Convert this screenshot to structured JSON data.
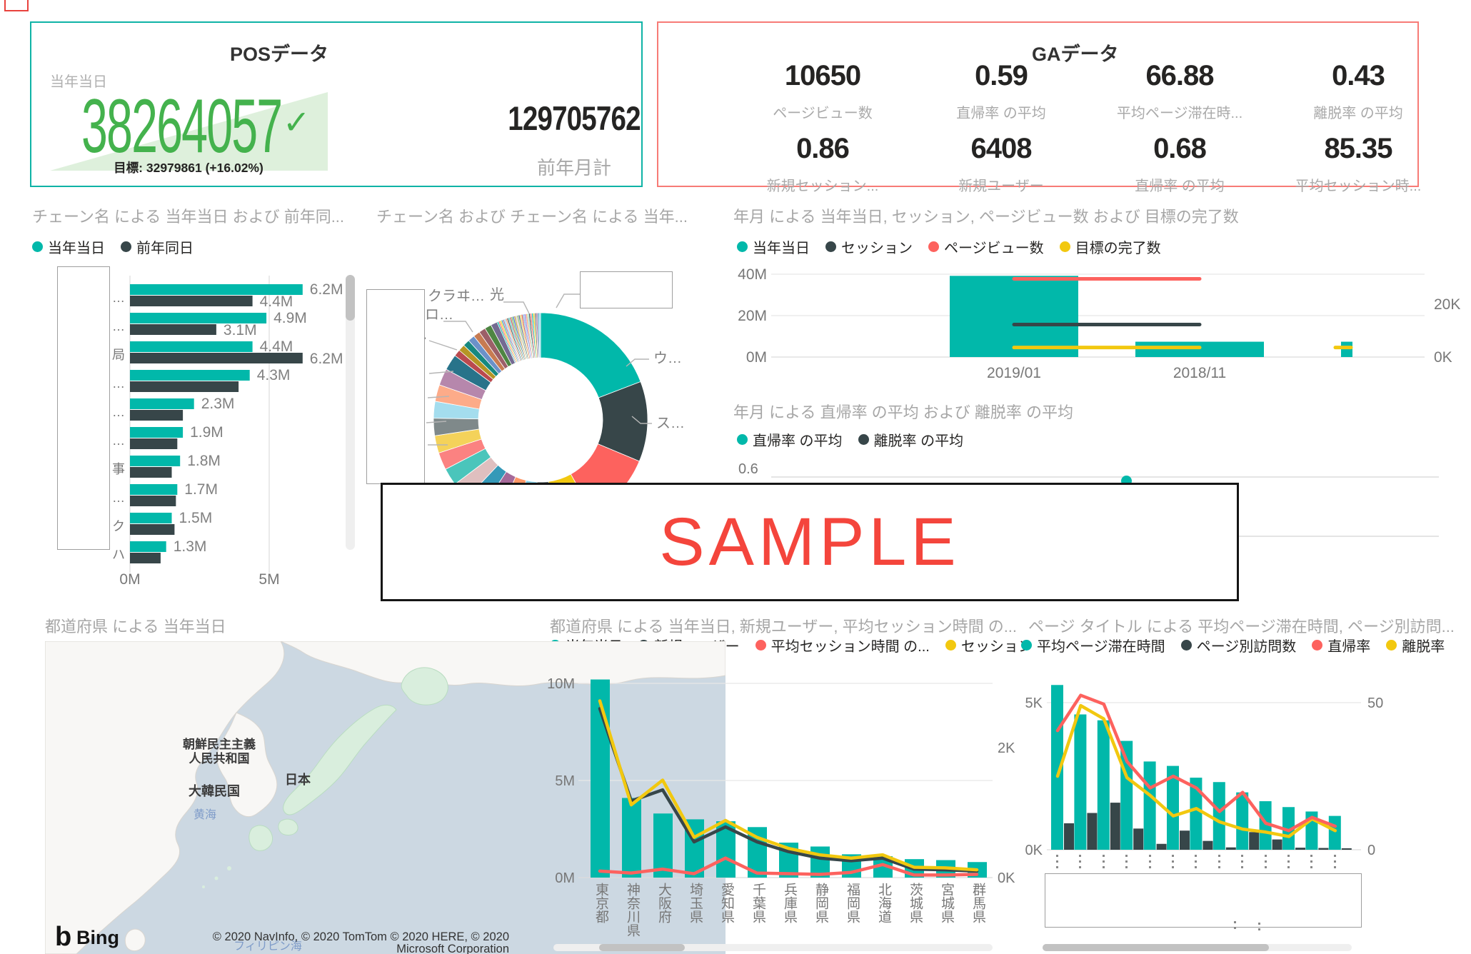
{
  "pos_card": {
    "title": "POSデータ",
    "metric_label": "当年当日",
    "value": "38264057",
    "check": "✓",
    "goal": "目標: 32979861 (+16.02%)",
    "secondary_value": "129705762",
    "secondary_label": "前年月計"
  },
  "ga_card": {
    "title": "GAデータ",
    "kpis": [
      {
        "value": "10650",
        "label": "ページビュー数"
      },
      {
        "value": "0.59",
        "label": "直帰率 の平均"
      },
      {
        "value": "66.88",
        "label": "平均ページ滞在時..."
      },
      {
        "value": "0.43",
        "label": "離脱率 の平均"
      },
      {
        "value": "0.86",
        "label": "新規セッション..."
      },
      {
        "value": "6408",
        "label": "新規ユーザー"
      },
      {
        "value": "0.68",
        "label": "直帰率 の平均"
      },
      {
        "value": "85.35",
        "label": "平均セッション時..."
      }
    ]
  },
  "sample_overlay": {
    "text": "SAMPLE",
    "color": "#f4453c"
  },
  "map": {
    "title": "都道府県 による 当年当日",
    "labels": {
      "north_korea_1": "朝鮮民主主義",
      "north_korea_2": "人民共和国",
      "south_korea": "大韓民国",
      "japan": "日本",
      "yellow_sea": "黄海",
      "philippine_sea": "フィリピン海"
    },
    "logo_mark": "b",
    "logo_text": "Bing",
    "attribution_1": "© 2020 NavInfo, © 2020 TomTom © 2020 HERE, © 2020",
    "attribution_2": "Microsoft Corporation"
  },
  "colors": {
    "teal": "#01B8AA",
    "dark": "#374649",
    "red": "#FD625E",
    "yellow": "#F2C80F",
    "green": "#44b24d",
    "light_green": "#def0dc",
    "title_gray": "#a6a6a6",
    "axis_gray": "#777777",
    "pos_border": "#0fb3a6",
    "ga_border": "#f77b76"
  },
  "chart_data": [
    {
      "id": "chain_bar",
      "type": "bar",
      "orientation": "horizontal",
      "title": "チェーン名 による 当年当日 および 前年同...",
      "legend": [
        {
          "label": "当年当日",
          "color": "#01B8AA"
        },
        {
          "label": "前年同日",
          "color": "#374649"
        }
      ],
      "series": [
        {
          "name": "当年当日",
          "color": "#01B8AA",
          "unit": "M",
          "values": [
            6.2,
            4.9,
            4.4,
            4.3,
            2.3,
            1.9,
            1.8,
            1.7,
            1.5,
            1.3
          ]
        },
        {
          "name": "前年同日",
          "color": "#374649",
          "unit": "M",
          "values": [
            4.4,
            3.1,
            6.2,
            3.9,
            1.9,
            1.7,
            1.5,
            1.65,
            1.6,
            1.1
          ]
        }
      ],
      "data_labels": {
        "current": [
          "6.2M",
          "4.9M",
          "4.4M",
          "4.3M",
          "2.3M",
          "1.9M",
          "1.8M",
          "1.7M",
          "1.5M",
          "1.3M"
        ],
        "prev": [
          "4.4M",
          "3.1M",
          "6.2M",
          "",
          "",
          "",
          "",
          "",
          "",
          ""
        ]
      },
      "visible_category_fragments": [
        "…",
        "…",
        "局",
        "…",
        "…",
        "…",
        "事",
        "…",
        "ク",
        "ハ"
      ],
      "x_ticks": [
        "0M",
        "5M"
      ],
      "xlim": [
        0,
        5
      ]
    },
    {
      "id": "donut",
      "type": "pie",
      "title": "チェーン名 および チェーン名 による 当年...",
      "callouts": [
        "クラヰ…",
        "光",
        "ロ…",
        "‥",
        "ウ…",
        "ス…"
      ],
      "slices": [
        {
          "p": 19,
          "c": "#01B8AA"
        },
        {
          "p": 12,
          "c": "#374649"
        },
        {
          "p": 10.5,
          "c": "#FD625E"
        },
        {
          "p": 6,
          "c": "#F2C80F"
        },
        {
          "p": 2.9,
          "c": "#5F6B6D"
        },
        {
          "p": 2.8,
          "c": "#8AD4EB"
        },
        {
          "p": 2.8,
          "c": "#FE9666"
        },
        {
          "p": 2.7,
          "c": "#A66999"
        },
        {
          "p": 2.7,
          "c": "#3599B8"
        },
        {
          "p": 2.7,
          "c": "#DFBFBF"
        },
        {
          "p": 2.6,
          "c": "#4AC5BB"
        },
        {
          "p": 2.6,
          "c": "#FB8281"
        },
        {
          "p": 2.6,
          "c": "#F4D25A"
        },
        {
          "p": 2.6,
          "c": "#7F898A"
        },
        {
          "p": 2.5,
          "c": "#A4DDEE"
        },
        {
          "p": 2.5,
          "c": "#FDAB89"
        },
        {
          "p": 2.5,
          "c": "#B687AC"
        },
        {
          "p": 2.4,
          "c": "#28738A"
        },
        {
          "p": 1,
          "c": "#BA4A4F"
        },
        {
          "p": 1,
          "c": "#B59525"
        },
        {
          "p": 1,
          "c": "#168980"
        },
        {
          "p": 1,
          "c": "#6B91C9"
        },
        {
          "p": 1,
          "c": "#C77B52"
        },
        {
          "p": 1,
          "c": "#9C5F68"
        },
        {
          "p": 1,
          "c": "#4E8542"
        },
        {
          "p": 1,
          "c": "#746A92"
        },
        {
          "p": 0.22,
          "c": "#01B8AA"
        },
        {
          "p": 0.22,
          "c": "#FD625E"
        },
        {
          "p": 0.22,
          "c": "#F2C80F"
        },
        {
          "p": 0.22,
          "c": "#3599B8"
        },
        {
          "p": 0.22,
          "c": "#A66999"
        },
        {
          "p": 0.22,
          "c": "#8AD4EB"
        },
        {
          "p": 0.22,
          "c": "#FE9666"
        },
        {
          "p": 0.22,
          "c": "#374649"
        },
        {
          "p": 0.22,
          "c": "#4AC5BB"
        },
        {
          "p": 0.22,
          "c": "#BA4A4F"
        },
        {
          "p": 0.22,
          "c": "#6BBB4E"
        },
        {
          "p": 0.22,
          "c": "#2F63C4"
        },
        {
          "p": 0.22,
          "c": "#B59525"
        },
        {
          "p": 0.22,
          "c": "#DFBFBF"
        },
        {
          "p": 0.22,
          "c": "#73B761"
        },
        {
          "p": 0.22,
          "c": "#4A588A"
        },
        {
          "p": 0.22,
          "c": "#ECC846"
        },
        {
          "p": 0.22,
          "c": "#CD4C46"
        },
        {
          "p": 0.22,
          "c": "#71AFE2"
        },
        {
          "p": 0.22,
          "c": "#8D6FD1"
        },
        {
          "p": 0.22,
          "c": "#EE9E64"
        },
        {
          "p": 0.22,
          "c": "#95DABB"
        },
        {
          "p": 0.22,
          "c": "#374649"
        },
        {
          "p": 0.22,
          "c": "#FD625E"
        },
        {
          "p": 0.22,
          "c": "#01B8AA"
        },
        {
          "p": 0.22,
          "c": "#F2C80F"
        },
        {
          "p": 0.22,
          "c": "#5F6B6D"
        },
        {
          "p": 0.22,
          "c": "#A66999"
        },
        {
          "p": 0.22,
          "c": "#3599B8"
        },
        {
          "p": 0.22,
          "c": "#8AD4EB"
        }
      ]
    },
    {
      "id": "monthly",
      "type": "bar+line",
      "title": "年月 による 当年当日, セッション, ページビュー数 および 目標の完了数",
      "legend": [
        {
          "label": "当年当日",
          "color": "#01B8AA"
        },
        {
          "label": "セッション",
          "color": "#374649"
        },
        {
          "label": "ページビュー数",
          "color": "#FD625E"
        },
        {
          "label": "目標の完了数",
          "color": "#F2C80F"
        }
      ],
      "categories": [
        "2019/01",
        "2018/11"
      ],
      "bar_series": {
        "name": "当年当日",
        "color": "#01B8AA",
        "unit": "M",
        "values": [
          39.2,
          7.4
        ],
        "partial_next_bar": 7.4
      },
      "line_series": [
        {
          "name": "セッション",
          "color": "#374649",
          "unit": "K",
          "values": [
            12.3,
            12.3
          ]
        },
        {
          "name": "ページビュー数",
          "color": "#FD625E",
          "unit": "K",
          "values": [
            29.6,
            29.6
          ]
        },
        {
          "name": "目標の完了数",
          "color": "#F2C80F",
          "unit": "K",
          "values": [
            3.6,
            3.6
          ],
          "partial_next_value": 3.6
        }
      ],
      "y_left_ticks": [
        "40M",
        "20M",
        "0M"
      ],
      "y_right_ticks": [
        "20K",
        "0K"
      ]
    },
    {
      "id": "rate",
      "type": "scatter",
      "title": "年月 による 直帰率 の平均 および 離脱率 の平均",
      "legend": [
        {
          "label": "直帰率 の平均",
          "color": "#01B8AA"
        },
        {
          "label": "離脱率 の平均",
          "color": "#374649"
        }
      ],
      "y_tick": "0.6",
      "visible_points": [
        {
          "series": "直帰率 の平均",
          "value": 0.6
        }
      ]
    },
    {
      "id": "prefecture",
      "type": "bar+line",
      "title": "都道府県 による 当年当日, 新規ユーザー, 平均セッション時間 の...",
      "legend": [
        {
          "label": "当年当日",
          "color": "#01B8AA"
        },
        {
          "label": "新規ユーザー",
          "color": "#374649"
        },
        {
          "label": "平均セッション時間 の...",
          "color": "#FD625E"
        },
        {
          "label": "セッション",
          "color": "#F2C80F"
        }
      ],
      "categories": [
        "東京都",
        "神奈川県",
        "大阪府",
        "埼玉県",
        "愛知県",
        "千葉県",
        "兵庫県",
        "静岡県",
        "福岡県",
        "北海道",
        "茨城県",
        "宮城県",
        "群馬県"
      ],
      "bar_series": {
        "name": "当年当日",
        "color": "#01B8AA",
        "unit": "M",
        "values": [
          10.2,
          4.1,
          3.3,
          3.0,
          2.9,
          2.6,
          1.8,
          1.6,
          1.2,
          1.1,
          0.95,
          0.9,
          0.8
        ]
      },
      "line_series": [
        {
          "name": "新規ユーザー",
          "color": "#374649",
          "unit": "K",
          "values": [
            2.6,
            1.18,
            1.35,
            0.55,
            0.78,
            0.55,
            0.4,
            0.3,
            0.26,
            0.3,
            0.13,
            0.12,
            0.1
          ]
        },
        {
          "name": "平均セッション時間 の...",
          "color": "#FD625E",
          "unit": "K",
          "values": [
            0.1,
            0.07,
            0.13,
            0.06,
            0.3,
            0.07,
            0.06,
            0.05,
            0.08,
            0.2,
            0.04,
            0.04,
            0.05
          ]
        },
        {
          "name": "セッション",
          "color": "#F2C80F",
          "unit": "K",
          "values": [
            2.72,
            1.12,
            1.5,
            0.62,
            0.88,
            0.62,
            0.45,
            0.35,
            0.3,
            0.35,
            0.16,
            0.15,
            0.12
          ]
        }
      ],
      "y_left_ticks": [
        "10M",
        "5M",
        "0M"
      ],
      "y_right_ticks": [
        "2K",
        "0K"
      ]
    },
    {
      "id": "pagetitle",
      "type": "bar+line",
      "title": "ページ タイトル による 平均ページ滞在時間, ページ別訪問...",
      "legend": [
        {
          "label": "平均ページ滞在時間",
          "color": "#01B8AA"
        },
        {
          "label": "ページ別訪問数",
          "color": "#374649"
        },
        {
          "label": "直帰率",
          "color": "#FD625E"
        },
        {
          "label": "離脱率",
          "color": "#F2C80F"
        }
      ],
      "category_count": 13,
      "bar_series": [
        {
          "name": "平均ページ滞在時間",
          "color": "#01B8AA",
          "unit": "K",
          "values": [
            5.6,
            4.6,
            4.4,
            3.7,
            3.0,
            2.85,
            2.45,
            2.3,
            1.95,
            1.65,
            1.45,
            1.3,
            1.15
          ]
        },
        {
          "name": "ページ別訪問数",
          "color": "#374649",
          "unit": "K",
          "values": [
            0.9,
            1.25,
            1.6,
            0.72,
            0.2,
            0.65,
            0.3,
            0.08,
            0.6,
            0.35,
            0.07,
            0.06,
            0.05
          ]
        }
      ],
      "line_series": [
        {
          "name": "直帰率",
          "color": "#FD625E",
          "values": [
            40.5,
            52.5,
            49.5,
            30,
            21,
            25,
            21,
            13,
            19.5,
            9,
            6.5,
            11,
            8
          ]
        },
        {
          "name": "離脱率",
          "color": "#F2C80F",
          "values": [
            25,
            49,
            44.5,
            24.5,
            18.5,
            11.5,
            14,
            9.5,
            7,
            6,
            4.5,
            10.5,
            6.5
          ]
        }
      ],
      "y_left_ticks": [
        "5K",
        "0K"
      ],
      "y_right_ticks": [
        "50",
        "0"
      ]
    }
  ]
}
